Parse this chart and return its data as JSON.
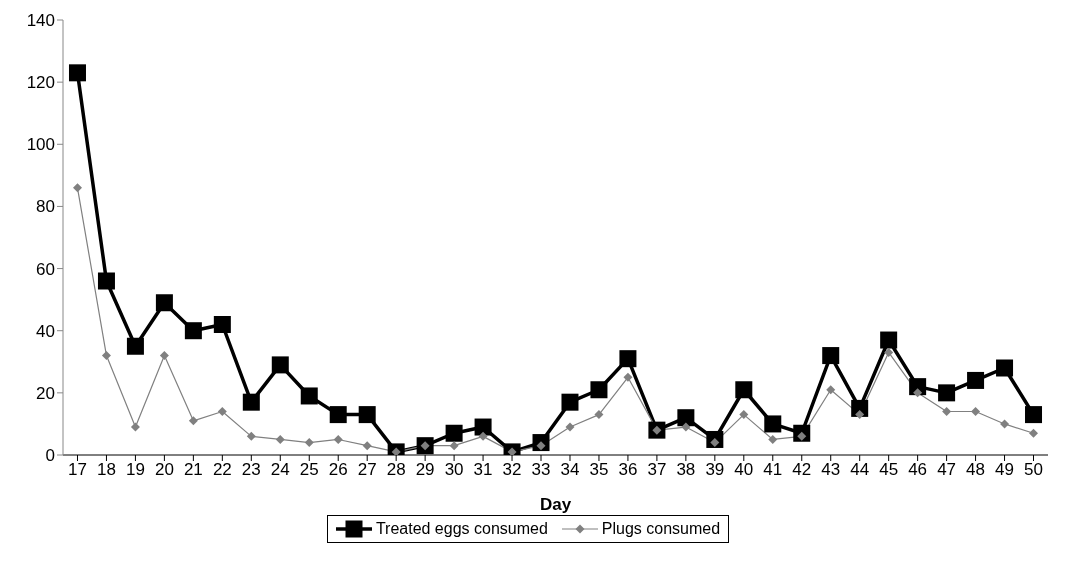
{
  "chart_data": {
    "type": "line",
    "xlabel": "Day",
    "categories": [
      "17",
      "18",
      "19",
      "20",
      "21",
      "22",
      "23",
      "24",
      "25",
      "26",
      "27",
      "28",
      "29",
      "30",
      "31",
      "32",
      "33",
      "34",
      "35",
      "36",
      "37",
      "38",
      "39",
      "40",
      "41",
      "42",
      "43",
      "44",
      "45",
      "46",
      "47",
      "48",
      "49",
      "50"
    ],
    "series": [
      {
        "name": "Treated eggs consumed",
        "color": "#000000",
        "marker": "square",
        "values": [
          123,
          56,
          35,
          49,
          40,
          42,
          17,
          29,
          19,
          13,
          13,
          1,
          3,
          7,
          9,
          1,
          4,
          17,
          21,
          31,
          8,
          12,
          5,
          21,
          10,
          7,
          32,
          15,
          37,
          22,
          20,
          24,
          28,
          13
        ]
      },
      {
        "name": "Plugs consumed",
        "color": "#808080",
        "marker": "diamond",
        "values": [
          86,
          32,
          9,
          32,
          11,
          14,
          6,
          5,
          4,
          5,
          3,
          1,
          3,
          3,
          6,
          1,
          3,
          9,
          13,
          25,
          8,
          9,
          4,
          13,
          5,
          6,
          21,
          13,
          33,
          20,
          14,
          14,
          10,
          7
        ]
      }
    ],
    "ylim": [
      0,
      140
    ],
    "yticks": [
      0,
      20,
      40,
      60,
      80,
      100,
      120,
      140
    ],
    "grid": false,
    "legend": "bottom",
    "line_style": "solid"
  }
}
